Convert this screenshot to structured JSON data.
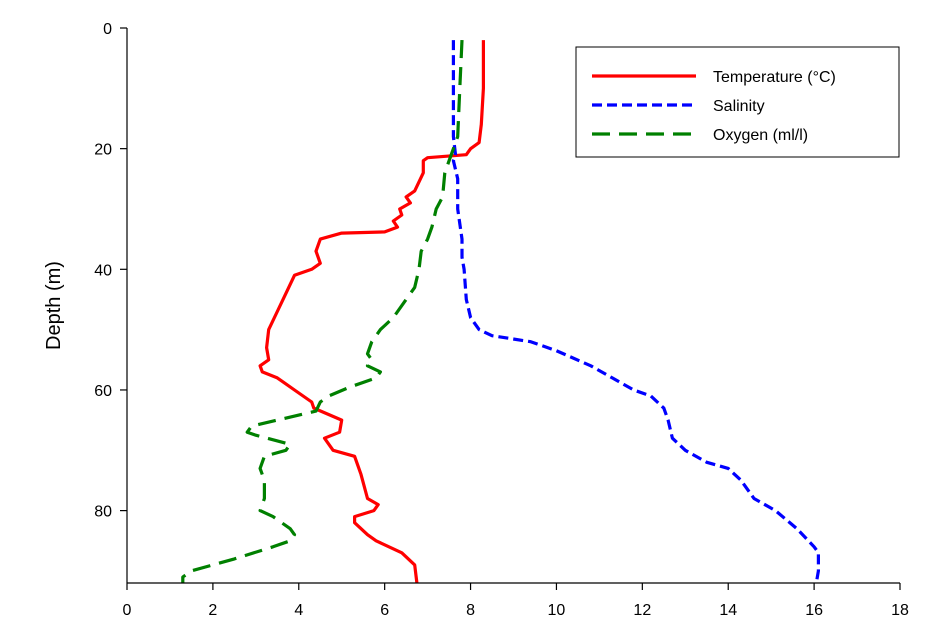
{
  "chart_data": {
    "type": "line",
    "ylabel": "Depth (m)",
    "xlabel": "",
    "xlim": [
      0,
      18
    ],
    "ylim": [
      0,
      92
    ],
    "y_inverted": true,
    "x_ticks": [
      0,
      2,
      4,
      6,
      8,
      10,
      12,
      14,
      16,
      18
    ],
    "y_ticks": [
      0,
      20,
      40,
      60,
      80
    ],
    "grid": false,
    "legend_position": "top-right",
    "series": [
      {
        "name": "Temperature (°C)",
        "color": "#ff0000",
        "style": "solid",
        "points": [
          [
            8.3,
            2
          ],
          [
            8.3,
            10
          ],
          [
            8.25,
            16
          ],
          [
            8.2,
            19
          ],
          [
            8.0,
            20
          ],
          [
            7.9,
            21
          ],
          [
            7.0,
            21.5
          ],
          [
            6.9,
            22
          ],
          [
            6.9,
            24
          ],
          [
            6.7,
            27
          ],
          [
            6.5,
            28
          ],
          [
            6.6,
            29
          ],
          [
            6.35,
            30
          ],
          [
            6.4,
            31
          ],
          [
            6.2,
            32
          ],
          [
            6.3,
            33
          ],
          [
            6.0,
            33.8
          ],
          [
            5.0,
            34
          ],
          [
            4.5,
            35
          ],
          [
            4.4,
            37
          ],
          [
            4.5,
            39
          ],
          [
            4.3,
            40
          ],
          [
            3.9,
            41
          ],
          [
            3.7,
            44
          ],
          [
            3.5,
            47
          ],
          [
            3.3,
            50
          ],
          [
            3.25,
            53
          ],
          [
            3.3,
            55
          ],
          [
            3.1,
            56
          ],
          [
            3.15,
            57
          ],
          [
            3.5,
            58
          ],
          [
            3.9,
            60
          ],
          [
            4.3,
            62
          ],
          [
            4.35,
            63
          ],
          [
            5.0,
            65
          ],
          [
            4.95,
            67
          ],
          [
            4.6,
            68
          ],
          [
            4.8,
            70
          ],
          [
            5.3,
            71
          ],
          [
            5.45,
            74
          ],
          [
            5.6,
            78
          ],
          [
            5.85,
            79
          ],
          [
            5.75,
            80
          ],
          [
            5.3,
            81
          ],
          [
            5.3,
            82
          ],
          [
            5.6,
            84
          ],
          [
            5.8,
            85
          ],
          [
            6.4,
            87
          ],
          [
            6.7,
            89
          ],
          [
            6.75,
            92
          ]
        ]
      },
      {
        "name": "Salinity",
        "color": "#0000ff",
        "style": "dotted",
        "points": [
          [
            7.6,
            2
          ],
          [
            7.6,
            10
          ],
          [
            7.6,
            18
          ],
          [
            7.65,
            21
          ],
          [
            7.6,
            22
          ],
          [
            7.7,
            25
          ],
          [
            7.7,
            30
          ],
          [
            7.8,
            35
          ],
          [
            7.8,
            38
          ],
          [
            7.85,
            40
          ],
          [
            7.9,
            45
          ],
          [
            8.0,
            48
          ],
          [
            8.2,
            50
          ],
          [
            8.5,
            51
          ],
          [
            9.4,
            52
          ],
          [
            10.0,
            53.5
          ],
          [
            10.8,
            56
          ],
          [
            11.3,
            58
          ],
          [
            11.8,
            60
          ],
          [
            12.2,
            61
          ],
          [
            12.5,
            63
          ],
          [
            12.6,
            65
          ],
          [
            12.7,
            68
          ],
          [
            13.0,
            70
          ],
          [
            13.5,
            72
          ],
          [
            14.0,
            73
          ],
          [
            14.3,
            75
          ],
          [
            14.6,
            78
          ],
          [
            15.1,
            80
          ],
          [
            15.6,
            83
          ],
          [
            16.0,
            86
          ],
          [
            16.1,
            87
          ],
          [
            16.1,
            90
          ],
          [
            16.05,
            92
          ]
        ]
      },
      {
        "name": "Oxygen (ml/l)",
        "color": "#008000",
        "style": "dashed",
        "points": [
          [
            7.8,
            2
          ],
          [
            7.75,
            10
          ],
          [
            7.7,
            18
          ],
          [
            7.6,
            20
          ],
          [
            7.5,
            22
          ],
          [
            7.4,
            24
          ],
          [
            7.35,
            28
          ],
          [
            7.2,
            30
          ],
          [
            7.1,
            33
          ],
          [
            7.0,
            35
          ],
          [
            6.85,
            37
          ],
          [
            6.8,
            40
          ],
          [
            6.7,
            43
          ],
          [
            6.5,
            45
          ],
          [
            6.2,
            48
          ],
          [
            5.9,
            50
          ],
          [
            5.7,
            52
          ],
          [
            5.6,
            54
          ],
          [
            5.7,
            55
          ],
          [
            5.6,
            56
          ],
          [
            5.9,
            57
          ],
          [
            5.8,
            58
          ],
          [
            5.2,
            59.5
          ],
          [
            4.7,
            61
          ],
          [
            4.5,
            62
          ],
          [
            4.4,
            63.5
          ],
          [
            3.5,
            65
          ],
          [
            2.9,
            66
          ],
          [
            2.8,
            67
          ],
          [
            3.0,
            67.5
          ],
          [
            3.8,
            69
          ],
          [
            3.7,
            70
          ],
          [
            3.2,
            71
          ],
          [
            3.1,
            73
          ],
          [
            3.2,
            75
          ],
          [
            3.2,
            78
          ],
          [
            3.1,
            80
          ],
          [
            3.4,
            81
          ],
          [
            3.8,
            83
          ],
          [
            3.9,
            84
          ],
          [
            3.8,
            85
          ],
          [
            3.4,
            86
          ],
          [
            2.5,
            88
          ],
          [
            2.0,
            89
          ],
          [
            1.5,
            90
          ],
          [
            1.3,
            91
          ],
          [
            1.3,
            92
          ]
        ]
      }
    ]
  }
}
